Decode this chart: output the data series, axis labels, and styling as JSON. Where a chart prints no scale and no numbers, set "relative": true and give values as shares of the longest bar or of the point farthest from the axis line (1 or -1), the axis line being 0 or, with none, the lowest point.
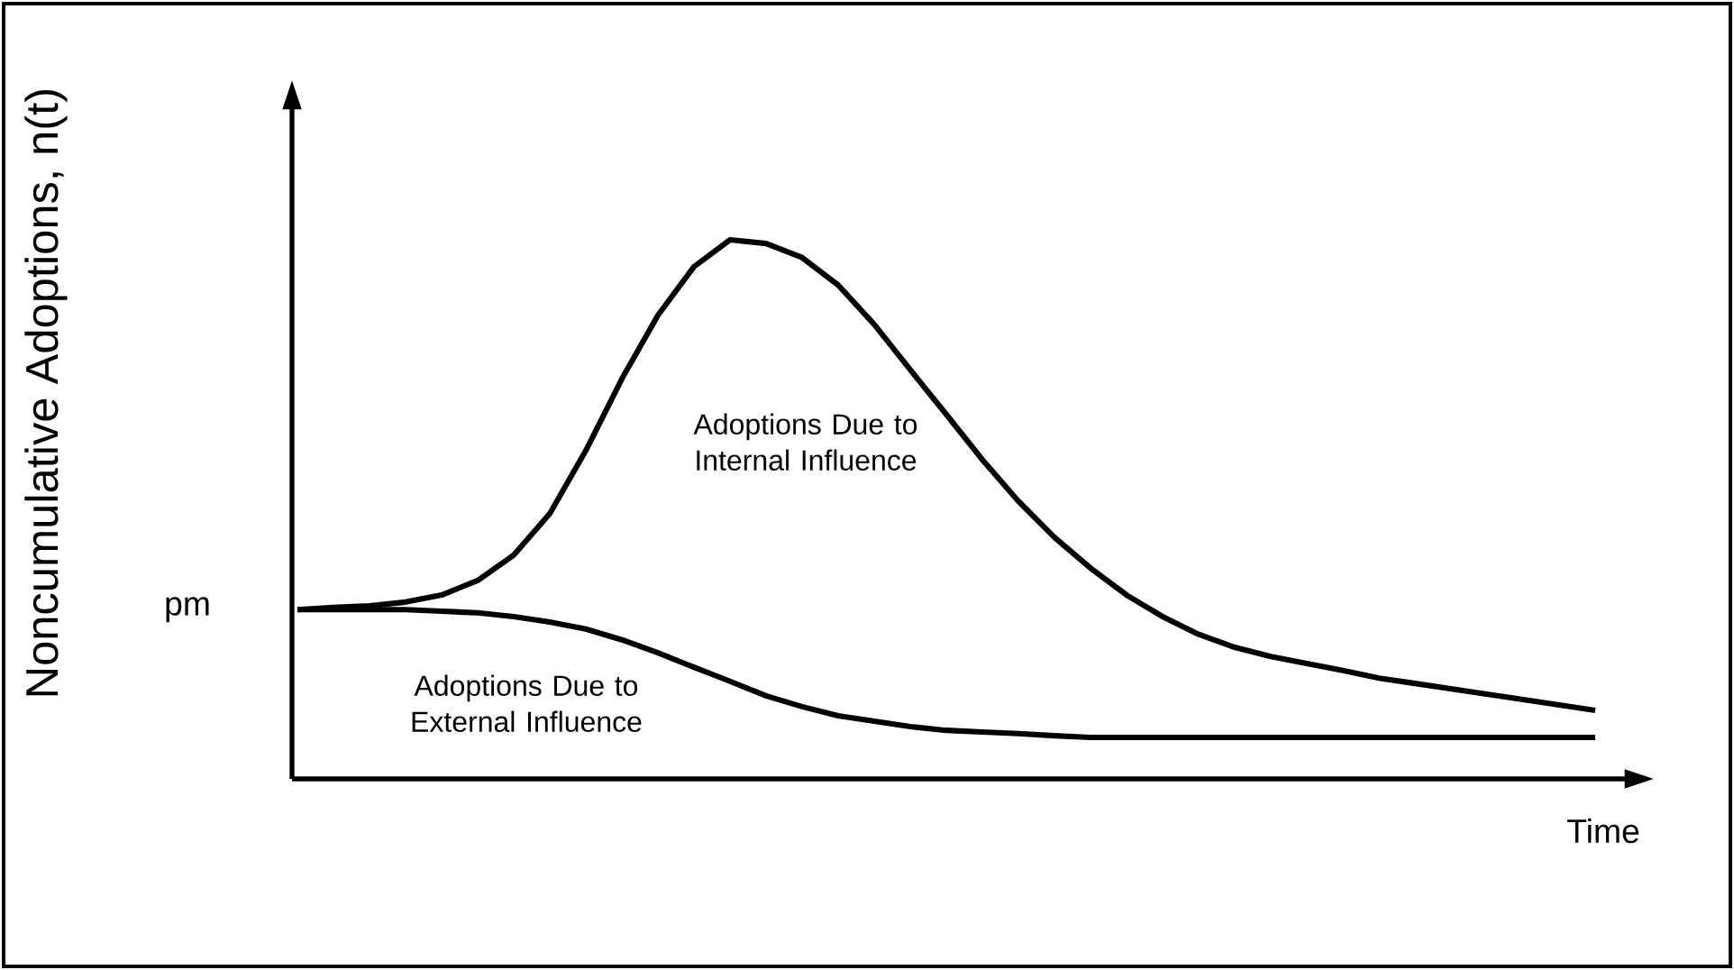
{
  "chart_data": {
    "type": "line",
    "relative": true,
    "marker": "none",
    "xlabel": "Time",
    "ylabel": "Noncumulative Adoptions, n(t)",
    "categories": [
      null,
      null,
      null,
      null,
      null,
      null,
      null,
      null,
      null,
      null,
      null,
      null,
      null,
      null,
      null,
      null,
      null,
      null,
      null,
      null,
      null,
      null,
      null,
      null,
      null,
      null,
      null,
      null,
      null,
      null,
      null,
      null,
      null,
      null,
      null,
      null,
      null
    ],
    "series": [
      {
        "color": "#000000",
        "values": [
          0.314,
          0.318,
          0.321,
          0.328,
          0.341,
          0.368,
          0.415,
          0.492,
          0.609,
          0.742,
          0.86,
          0.95,
          1.0,
          0.993,
          0.967,
          0.916,
          0.843,
          0.759,
          0.676,
          0.592,
          0.515,
          0.448,
          0.391,
          0.341,
          0.301,
          0.268,
          0.244,
          0.227,
          0.214,
          0.201,
          0.187,
          0.177,
          0.167,
          0.157,
          0.147,
          0.137,
          0.127
        ]
      },
      {
        "color": "#000000",
        "values": [
          0.314,
          0.314,
          0.314,
          0.314,
          0.311,
          0.308,
          0.301,
          0.291,
          0.278,
          0.258,
          0.234,
          0.207,
          0.181,
          0.154,
          0.134,
          0.117,
          0.107,
          0.097,
          0.09,
          0.087,
          0.084,
          0.08,
          0.077,
          0.077,
          0.077,
          0.077,
          0.077,
          0.077,
          0.077,
          0.077,
          0.077,
          0.077,
          0.077,
          0.077,
          0.077,
          0.077,
          0.077
        ]
      }
    ],
    "annotations": [
      "pm",
      "Adoptions Due to Internal Influence",
      "Adoptions Due to External Influence"
    ]
  }
}
